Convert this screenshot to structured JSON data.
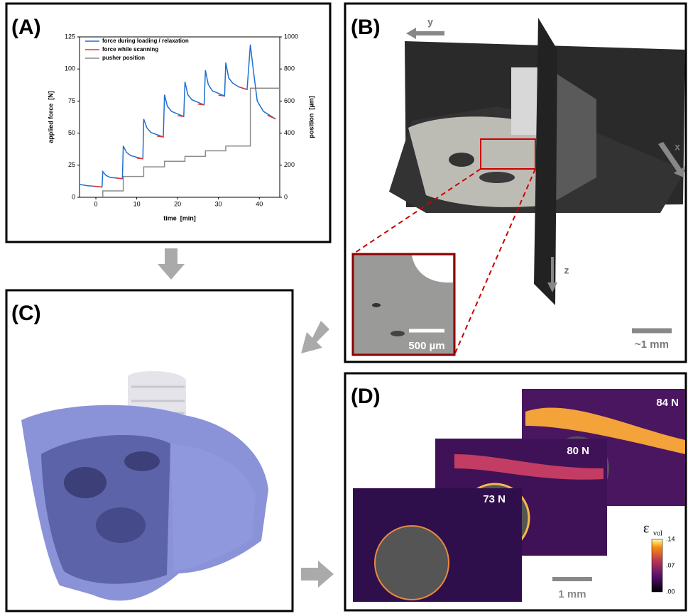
{
  "panels": {
    "A": {
      "label": "(A)"
    },
    "B": {
      "label": "(B)",
      "axis_y": "y",
      "axis_x": "x",
      "axis_z": "z",
      "inset_scale": "500 µm",
      "scale": "~1 mm"
    },
    "C": {
      "label": "(C)"
    },
    "D": {
      "label": "(D)",
      "forces": [
        "84 N",
        "80 N",
        "73 N"
      ],
      "scale": "1 mm",
      "colorbar": {
        "label": "ε",
        "subscript": "vol",
        "lim": [
          0,
          0.14
        ],
        "ticks": [
          {
            "value": 0.14,
            "label": ".14"
          },
          {
            "value": 0.07,
            "label": ".07"
          },
          {
            "value": 0,
            "label": ".00"
          }
        ]
      }
    }
  },
  "chart_data": {
    "type": "line",
    "xlabel": "time  [min]",
    "ylabel": "applied force  [N]",
    "y2label": "position  [µm]",
    "xlim": [
      -4,
      45
    ],
    "ylim": [
      0,
      125
    ],
    "y2lim": [
      0,
      1000
    ],
    "xticks": [
      0,
      10,
      20,
      30,
      40
    ],
    "yticks": [
      0,
      25,
      50,
      75,
      100,
      125
    ],
    "y2ticks": [
      0,
      200,
      400,
      600,
      800,
      1000
    ],
    "legend": "upper left",
    "series": [
      {
        "name": "force during loading / relaxation",
        "color": "#1f6fd1",
        "x": [
          -4,
          -2,
          0,
          1.5,
          1.7,
          2.5,
          3.5,
          6.5,
          6.7,
          7.5,
          8.5,
          11.5,
          11.7,
          12.5,
          13.5,
          16.5,
          16.8,
          17.5,
          18.5,
          21.5,
          21.8,
          22.5,
          23.5,
          26.5,
          26.8,
          27.5,
          28.5,
          31.5,
          31.8,
          32.5,
          33.5,
          35,
          37,
          37.8,
          38.5,
          39.5,
          41,
          44
        ],
        "values": [
          10,
          9,
          8.5,
          8,
          20,
          17,
          15.5,
          14.5,
          40,
          35,
          32.5,
          30,
          61,
          54,
          50.5,
          47,
          80,
          71,
          67,
          63,
          90,
          80,
          76,
          72,
          99,
          88,
          83,
          79,
          105,
          93,
          89,
          86,
          84,
          119,
          100,
          75,
          67,
          61
        ]
      },
      {
        "name": "force while scanning",
        "color": "#e8352b",
        "x": [
          -0.5,
          1.5,
          null,
          5,
          6.5,
          null,
          10,
          11.5,
          null,
          15,
          16.5,
          null,
          20,
          21.5,
          null,
          25,
          26.5,
          null,
          30,
          31.5,
          null,
          35,
          37,
          null,
          42,
          44
        ],
        "values": [
          8.6,
          8,
          null,
          15,
          14.5,
          null,
          30.6,
          30,
          null,
          47.6,
          47,
          null,
          63.6,
          63,
          null,
          72.6,
          72,
          null,
          79.6,
          79,
          null,
          86,
          84,
          null,
          64,
          61
        ]
      },
      {
        "name": "pusher position",
        "color": "#8c8c8c",
        "axis": "y2",
        "x": [
          1.7,
          1.7,
          6.7,
          6.7,
          11.7,
          11.7,
          16.8,
          16.8,
          21.8,
          21.8,
          26.8,
          26.8,
          31.8,
          31.8,
          37.8,
          37.8,
          45
        ],
        "values": [
          0,
          40,
          40,
          130,
          130,
          190,
          190,
          225,
          225,
          255,
          255,
          290,
          290,
          320,
          320,
          680,
          680
        ]
      }
    ]
  }
}
